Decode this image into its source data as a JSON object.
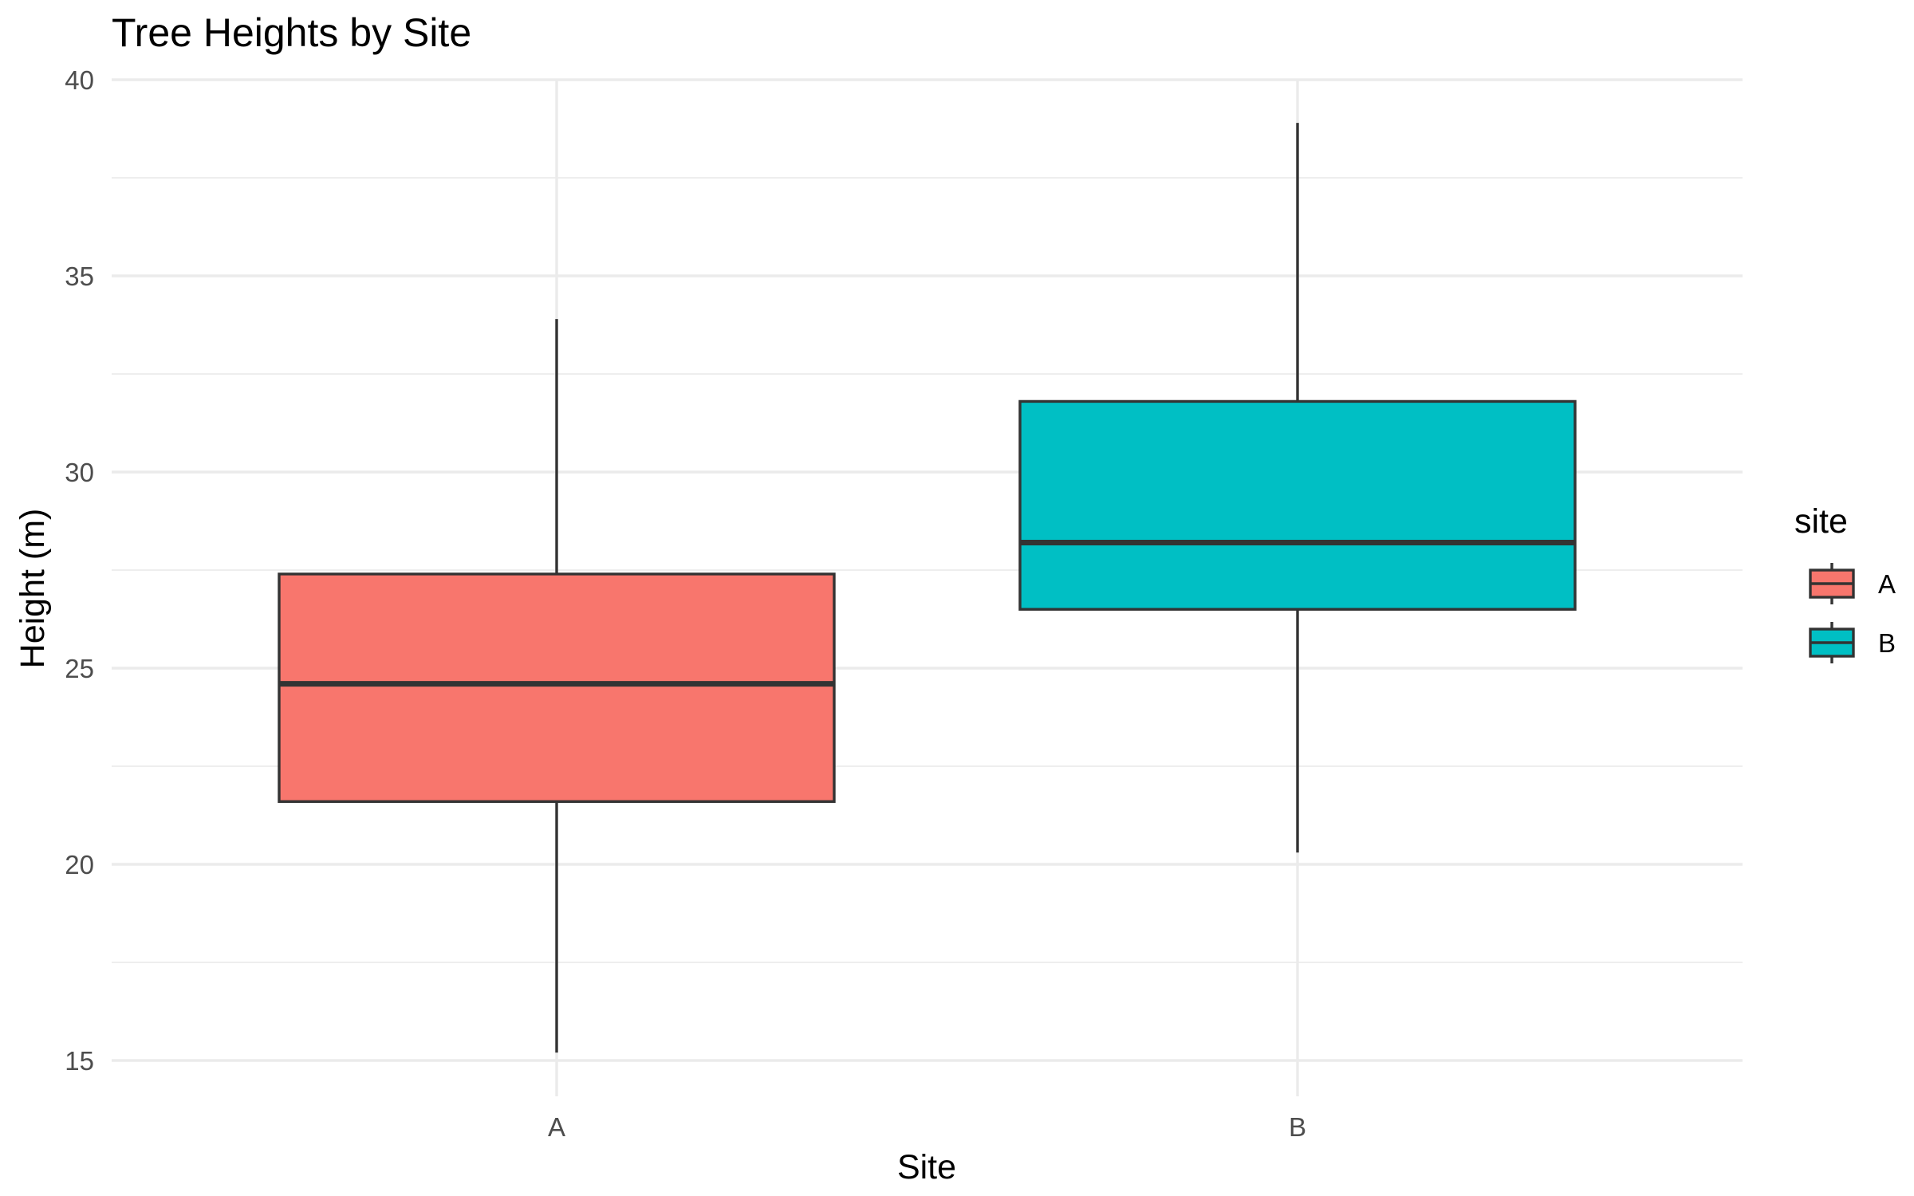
{
  "chart_data": {
    "type": "boxplot",
    "title": "Tree Heights by Site",
    "xlabel": "Site",
    "ylabel": "Height (m)",
    "categories": [
      "A",
      "B"
    ],
    "ylim": [
      14.8,
      40
    ],
    "yticks": [
      15,
      20,
      25,
      30,
      35,
      40
    ],
    "grid": true,
    "legend": {
      "title": "site",
      "position": "right",
      "entries": [
        "A",
        "B"
      ]
    },
    "series": [
      {
        "category": "A",
        "min": 15.2,
        "q1": 21.6,
        "median": 24.6,
        "q3": 27.4,
        "max": 33.9,
        "color": "#F8766D"
      },
      {
        "category": "B",
        "min": 20.3,
        "q1": 26.5,
        "median": 28.2,
        "q3": 31.8,
        "max": 38.9,
        "color": "#00BFC4"
      }
    ]
  }
}
